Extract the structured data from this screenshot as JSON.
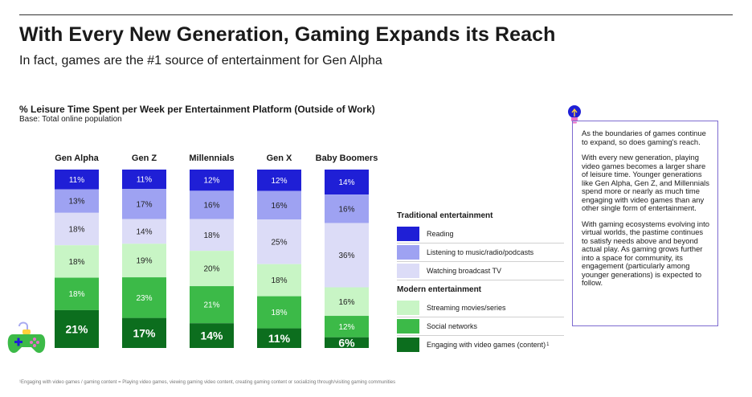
{
  "title": "With Every New Generation, Gaming Expands its Reach",
  "subtitle": "In fact, games are the #1 source of entertainment for Gen Alpha",
  "chart_title": "% Leisure Time Spent per Week per Entertainment Platform (Outside of Work)",
  "chart_base": "Base: Total online population",
  "chart_data": {
    "type": "bar",
    "stacked": true,
    "normalized": true,
    "categories": [
      "Gen Alpha",
      "Gen Z",
      "Millennials",
      "Gen X",
      "Baby Boomers"
    ],
    "series": [
      {
        "name": "Reading",
        "group": "Traditional entertainment",
        "color": "#1f1fd6",
        "values": [
          11,
          11,
          12,
          12,
          14
        ],
        "labels": [
          "11%",
          "11%",
          "12%",
          "12%",
          "14%"
        ]
      },
      {
        "name": "Listening to music/radio/podcasts",
        "group": "Traditional entertainment",
        "color": "#9ea2f2",
        "values": [
          13,
          17,
          16,
          16,
          16
        ],
        "labels": [
          "13%",
          "17%",
          "16%",
          "16%",
          "16%"
        ]
      },
      {
        "name": "Watching broadcast TV",
        "group": "Traditional entertainment",
        "color": "#dcdcf7",
        "values": [
          18,
          14,
          18,
          25,
          36
        ],
        "labels": [
          "18%",
          "14%",
          "18%",
          "25%",
          "36%"
        ]
      },
      {
        "name": "Streaming movies/series",
        "group": "Modern entertainment",
        "color": "#c8f5c5",
        "values": [
          18,
          19,
          20,
          18,
          16
        ],
        "labels": [
          "18%",
          "19%",
          "20%",
          "18%",
          "16%"
        ]
      },
      {
        "name": "Social networks",
        "group": "Modern entertainment",
        "color": "#3cba48",
        "values": [
          18,
          23,
          21,
          18,
          12
        ],
        "labels": [
          "18%",
          "23%",
          "21%",
          "18%",
          "12%"
        ]
      },
      {
        "name": "Engaging with video games (content)",
        "group": "Modern entertainment",
        "color": "#0c6e1e",
        "values": [
          21,
          17,
          14,
          11,
          6
        ],
        "labels": [
          "21%",
          "17%",
          "14%",
          "11%",
          "6%"
        ]
      }
    ]
  },
  "legend": {
    "traditional_heading": "Traditional entertainment",
    "modern_heading": "Modern entertainment",
    "items": [
      {
        "label": "Reading",
        "color": "#1f1fd6"
      },
      {
        "label": "Listening to music/radio/podcasts",
        "color": "#9ea2f2"
      },
      {
        "label": "Watching broadcast TV",
        "color": "#dcdcf7"
      },
      {
        "label": "Streaming movies/series",
        "color": "#c8f5c5"
      },
      {
        "label": "Social networks",
        "color": "#3cba48"
      },
      {
        "label": "Engaging with video games (content)",
        "color": "#0c6e1e",
        "sup": "1"
      }
    ]
  },
  "note": {
    "p1": "As the boundaries of games continue to expand, so does gaming's reach.",
    "p2": "With every new generation, playing video games becomes a larger share of leisure time. Younger generations like Gen Alpha, Gen Z, and Millennials spend more or nearly as much time engaging with video games than any other single form of entertainment.",
    "p3": "With gaming ecosystems evolving into virtual worlds, the pastime continues to satisfy needs above and beyond actual play. As gaming grows further into a space for community, its engagement (particularly among younger generations) is expected to follow."
  },
  "footnote": "¹Engaging with video games / gaming content = Playing video games, viewing gaming video content, creating gaming content or socializing through/visiting gaming communities"
}
